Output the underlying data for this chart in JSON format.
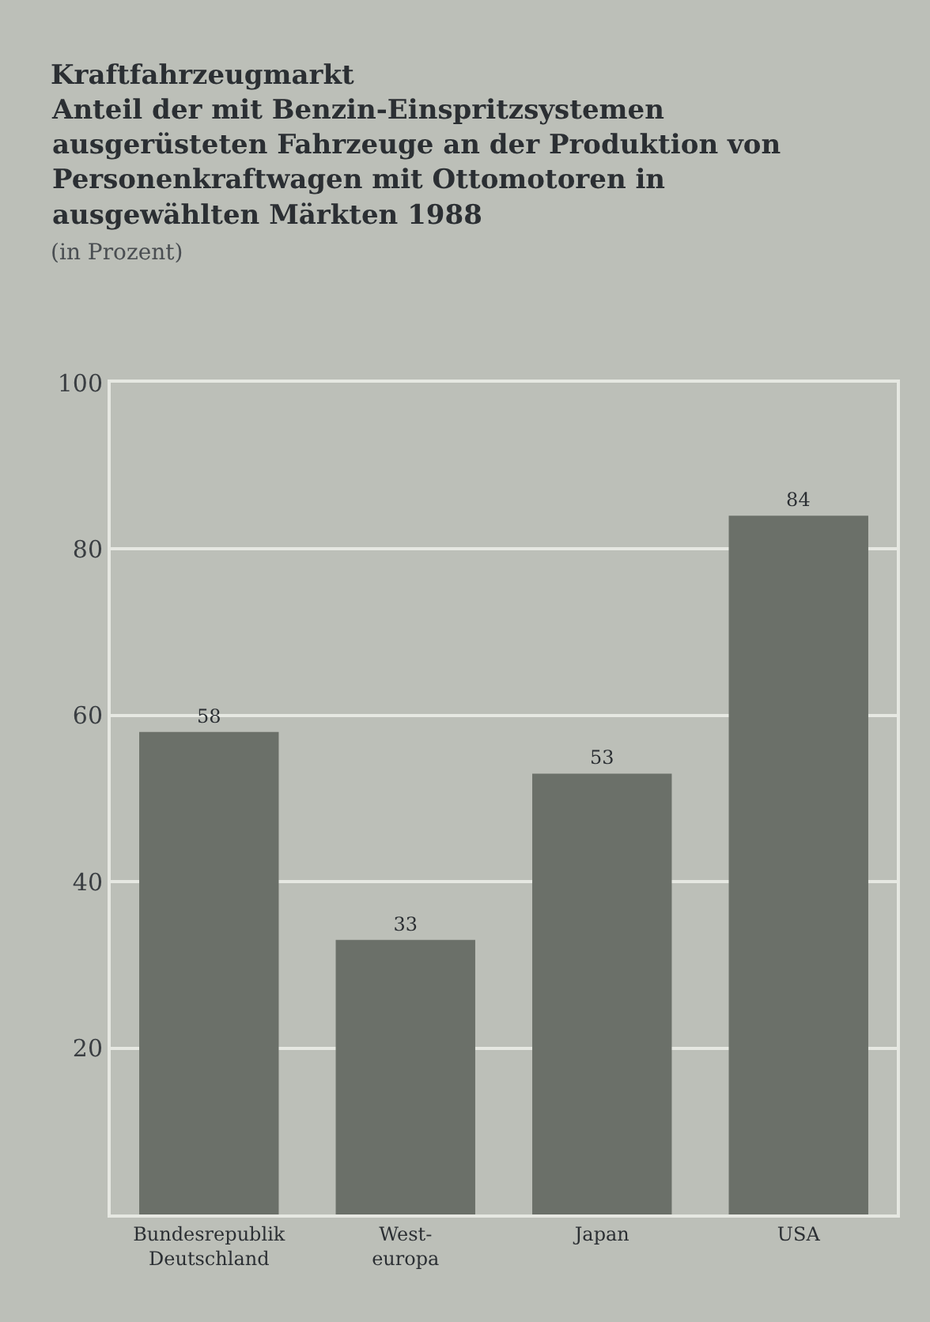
{
  "chart_data": {
    "type": "bar",
    "title": "Kraftfahrzeugmarkt",
    "subtitle": "Anteil der mit Benzin-Einspritzsystemen ausgerüsteten Fahrzeuge an der Produktion von Personenkraftwagen mit Ottomotoren in ausgewählten Märkten 1988",
    "annotations": [
      "(in Prozent)"
    ],
    "categories": [
      "Bundesrepublik\nDeutschland",
      "West-\neuropa",
      "Japan",
      "USA"
    ],
    "values": [
      58,
      33,
      53,
      84
    ],
    "color": "#6b7069",
    "ylim": [
      0,
      100
    ],
    "yticks": [
      20,
      40,
      60,
      80,
      100
    ],
    "grid": "y",
    "data_labels": true
  }
}
